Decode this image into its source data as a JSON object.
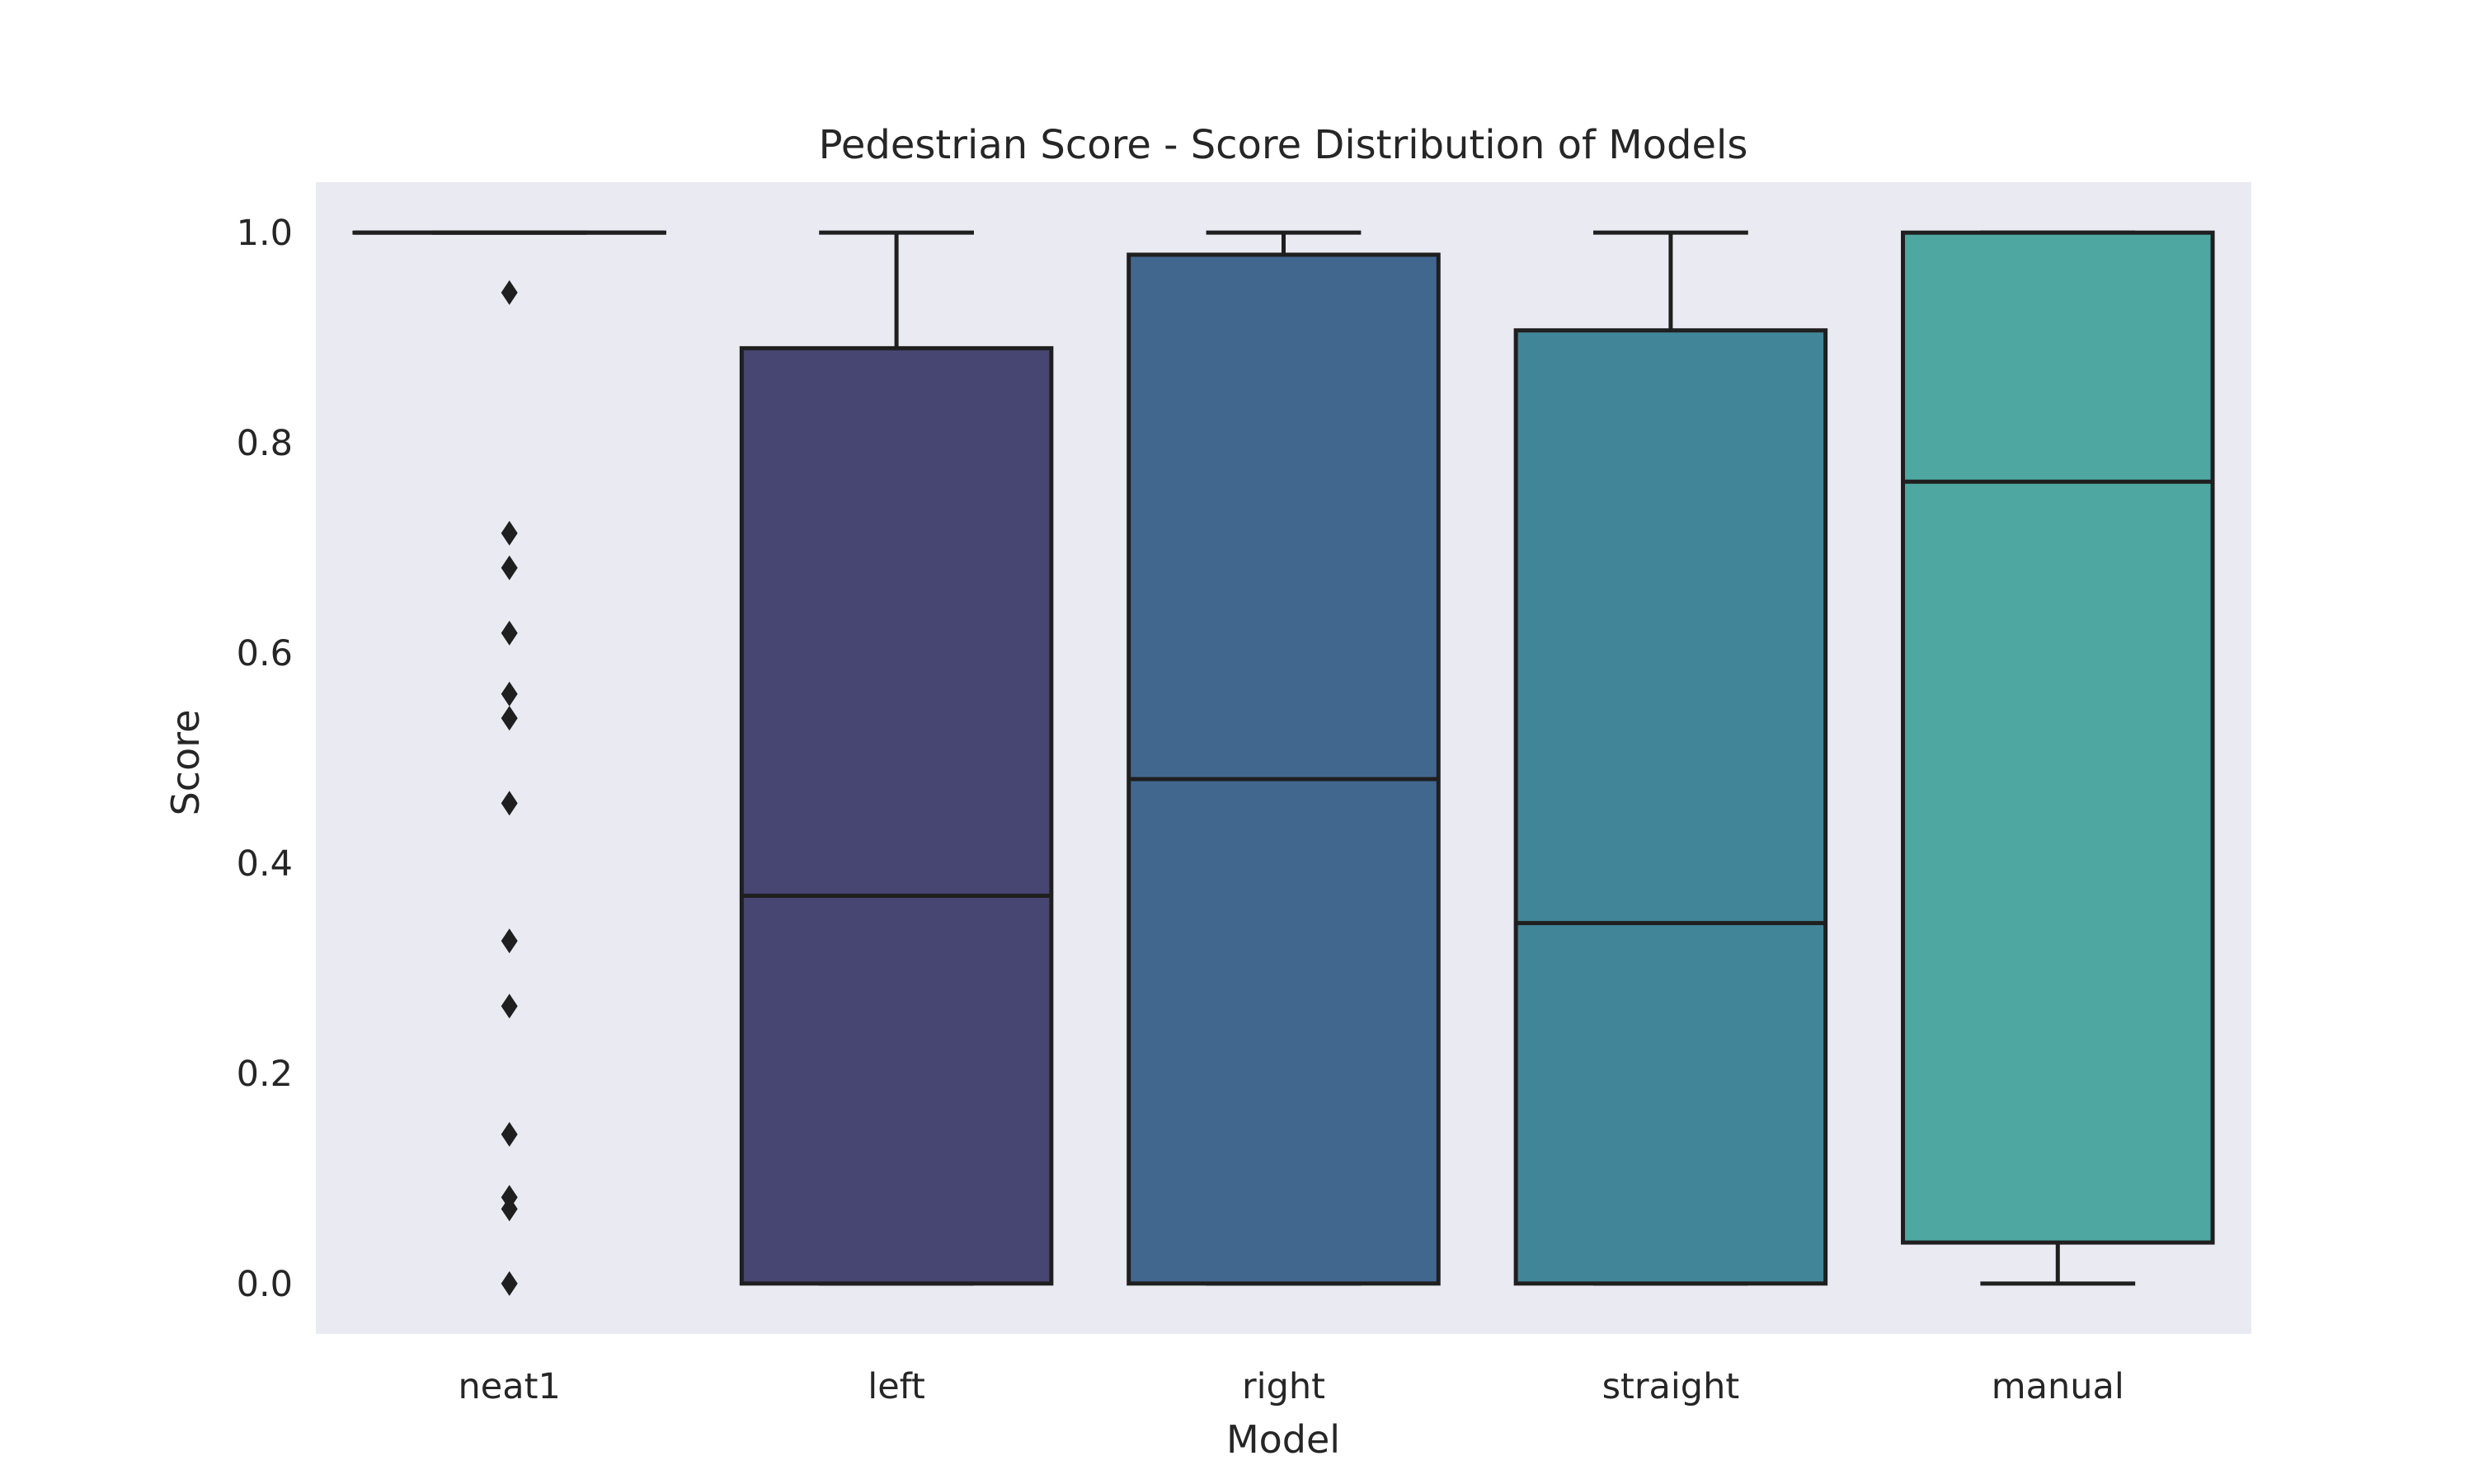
{
  "chart_data": {
    "type": "box",
    "title": "Pedestrian Score - Score Distribution of Models",
    "xlabel": "Model",
    "ylabel": "Score",
    "ylim": [
      -0.048,
      1.048
    ],
    "yticks": [
      0.0,
      0.2,
      0.4,
      0.6,
      0.8,
      1.0
    ],
    "ytick_labels": [
      "0.0",
      "0.2",
      "0.4",
      "0.6",
      "0.8",
      "1.0"
    ],
    "grid": false,
    "categories": [
      "neat1",
      "left",
      "right",
      "straight",
      "manual"
    ],
    "boxes": [
      {
        "name": "neat1",
        "whisker_low": 1.0,
        "q1": 1.0,
        "median": 1.0,
        "q3": 1.0,
        "whisker_high": 1.0,
        "color": "#4c5c8a",
        "outliers": [
          0.943,
          0.714,
          0.681,
          0.619,
          0.561,
          0.538,
          0.457,
          0.326,
          0.264,
          0.142,
          0.082,
          0.071,
          0.0
        ]
      },
      {
        "name": "left",
        "whisker_low": 0.0,
        "q1": 0.0,
        "median": 0.369,
        "q3": 0.89,
        "whisker_high": 1.0,
        "color": "#474571",
        "outliers": []
      },
      {
        "name": "right",
        "whisker_low": 0.0,
        "q1": 0.0,
        "median": 0.48,
        "q3": 0.979,
        "whisker_high": 1.0,
        "color": "#42678f",
        "outliers": []
      },
      {
        "name": "straight",
        "whisker_low": 0.0,
        "q1": 0.0,
        "median": 0.343,
        "q3": 0.907,
        "whisker_high": 1.0,
        "color": "#418698",
        "outliers": []
      },
      {
        "name": "manual",
        "whisker_low": 0.0,
        "q1": 0.039,
        "median": 0.763,
        "q3": 1.0,
        "whisker_high": 1.0,
        "color": "#4ea8a1",
        "outliers": []
      }
    ]
  }
}
